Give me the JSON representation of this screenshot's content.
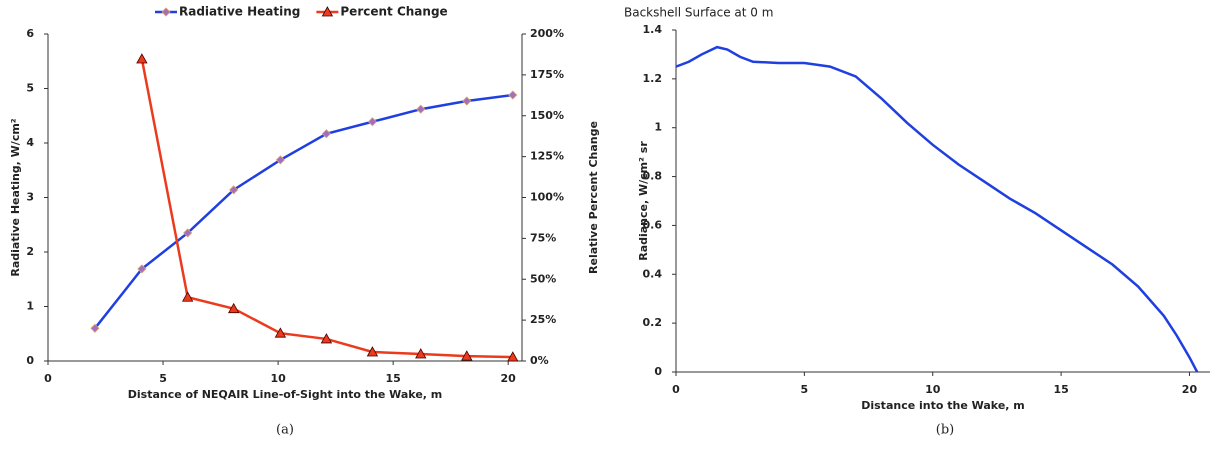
{
  "chart_data": [
    {
      "type": "line",
      "caption": "(a)",
      "x_label": "Distance of NEQAIR Line-of-Sight into the Wake, m",
      "y_label": "Radiative Heating, W/cm²",
      "y2_label": "Relative Percent Change",
      "x": [
        2.04,
        4.08,
        6.07,
        8.07,
        10.1,
        12.1,
        14.1,
        16.2,
        18.2,
        20.2
      ],
      "series": [
        {
          "name": "Radiative Heating",
          "color": "#1f3fe0",
          "marker": "diamond",
          "values": [
            0.6,
            1.69,
            2.35,
            3.14,
            3.69,
            4.17,
            4.39,
            4.62,
            4.77,
            4.88
          ]
        },
        {
          "name": "Percent Change",
          "color": "#ec3a1c",
          "marker": "triangle",
          "axis": "y2",
          "values": [
            null,
            184.7,
            39,
            32,
            17,
            13.5,
            5.5,
            4.3,
            3,
            2.4
          ]
        }
      ],
      "xlim": [
        0,
        20.6
      ],
      "xticks": [
        0,
        5,
        10,
        15,
        20
      ],
      "ylim": [
        0,
        6
      ],
      "yticks": [
        0,
        1,
        2,
        3,
        4,
        5,
        6
      ],
      "y2lim": [
        0,
        200
      ],
      "y2ticks": [
        {
          "value": 0,
          "label": "0%"
        },
        {
          "value": 25,
          "label": "25%"
        },
        {
          "value": 50,
          "label": "50%"
        },
        {
          "value": 75,
          "label": "75%"
        },
        {
          "value": 100,
          "label": "100%"
        },
        {
          "value": 125,
          "label": "125%"
        },
        {
          "value": 150,
          "label": "150%"
        },
        {
          "value": 175,
          "label": "175%"
        },
        {
          "value": 200,
          "label": "200%"
        }
      ],
      "legend": "top",
      "grid": false
    },
    {
      "type": "line",
      "caption": "(b)",
      "subtitle": "Backshell Surface at 0 m",
      "subtitle_color": "#e8211c",
      "x_label": "Distance into the Wake, m",
      "y_label": "Radiance, W/cm² sr",
      "x": [
        0,
        0.5,
        1,
        1.6,
        2,
        2.5,
        3,
        4,
        5,
        6,
        7,
        8,
        9,
        10,
        11,
        12,
        13,
        14,
        15,
        16,
        17,
        18,
        19,
        19.5,
        20,
        20.3
      ],
      "series": [
        {
          "name": null,
          "color": "#1f3fe0",
          "marker": "none",
          "values": [
            1.25,
            1.27,
            1.3,
            1.33,
            1.32,
            1.29,
            1.27,
            1.265,
            1.265,
            1.25,
            1.21,
            1.12,
            1.02,
            0.93,
            0.85,
            0.78,
            0.71,
            0.65,
            0.58,
            0.51,
            0.44,
            0.35,
            0.23,
            0.15,
            0.06,
            0
          ]
        }
      ],
      "xlim": [
        0,
        20.8
      ],
      "xticks": [
        0,
        5,
        10,
        15,
        20
      ],
      "ylim": [
        0,
        1.4
      ],
      "yticks": [
        0,
        0.2,
        0.4,
        0.6,
        0.8,
        1,
        1.2,
        1.4
      ],
      "legend": "none",
      "grid": false
    }
  ]
}
